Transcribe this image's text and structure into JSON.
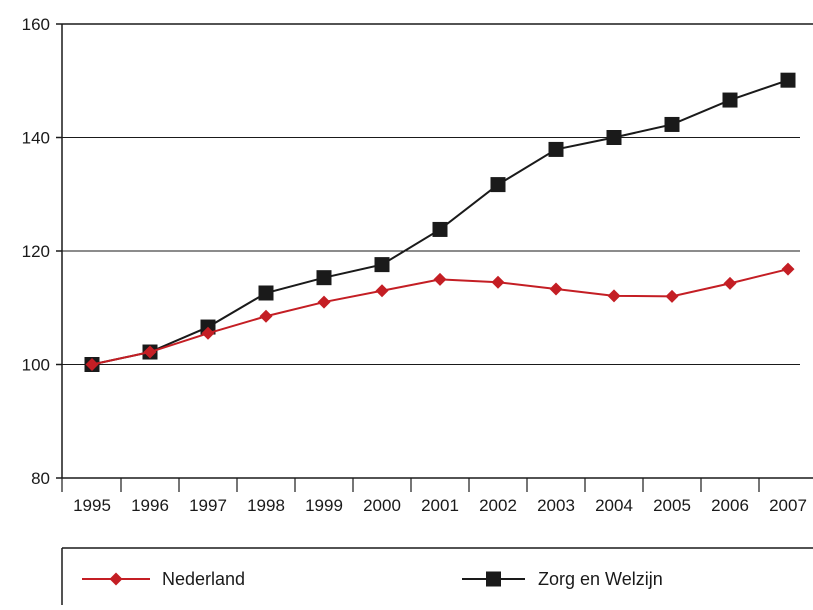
{
  "chart_data": {
    "type": "line",
    "title": "",
    "xlabel": "",
    "ylabel": "",
    "x": [
      "1995",
      "1996",
      "1997",
      "1998",
      "1999",
      "2000",
      "2001",
      "2002",
      "2003",
      "2004",
      "2005",
      "2006",
      "2007"
    ],
    "ylim": [
      80,
      160
    ],
    "yticks": [
      80,
      100,
      120,
      140,
      160
    ],
    "grid": "horizontal",
    "legend_position": "bottom",
    "series": [
      {
        "name": "Nederland",
        "color": "#c41e24",
        "marker": "diamond",
        "values": [
          100,
          102.2,
          105.5,
          108.5,
          111,
          113,
          115,
          114.5,
          113.3,
          112.1,
          112,
          114.3,
          116.8
        ]
      },
      {
        "name": "Zorg en Welzijn",
        "color": "#1a1a1a",
        "marker": "square",
        "values": [
          100,
          102.2,
          106.6,
          112.6,
          115.3,
          117.6,
          123.8,
          131.7,
          137.9,
          140,
          142.3,
          146.6,
          150.1
        ]
      }
    ]
  }
}
